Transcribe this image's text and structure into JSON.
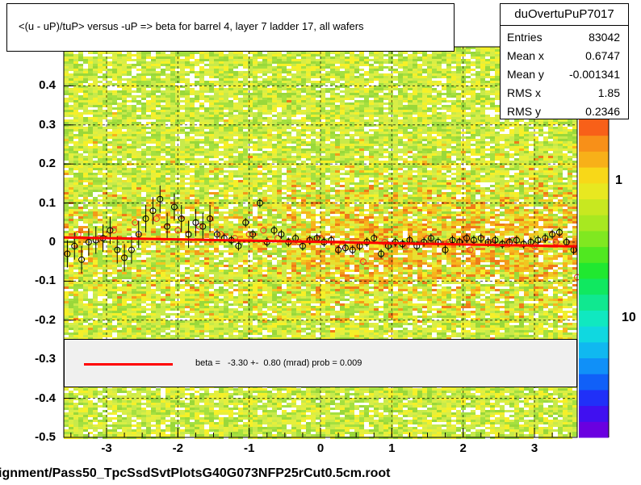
{
  "title": "<(u - uP)/tuP> versus  -uP => beta for barrel 4, layer 7 ladder 17, all wafers",
  "stats": {
    "name": "duOvertuPuP7017",
    "rows": [
      {
        "key": "Entries",
        "value": "83042"
      },
      {
        "key": "Mean x",
        "value": "0.6747"
      },
      {
        "key": "Mean y",
        "value": "-0.001341"
      },
      {
        "key": "RMS x",
        "value": "1.85"
      },
      {
        "key": "RMS y",
        "value": "0.2346"
      }
    ]
  },
  "fit": {
    "text": "beta =   -3.30 +-  0.80 (mrad) prob = 0.009",
    "color": "#ff0000"
  },
  "footer": "ignment/Pass50_TpcSsdSvtPlotsG40G073NFP25rCut0.5cm.root",
  "chart_data": {
    "type": "scatter",
    "xlim": [
      -3.6,
      3.6
    ],
    "ylim": [
      -0.5,
      0.5
    ],
    "x_ticks": [
      "-3",
      "-2",
      "-1",
      "0",
      "1",
      "2",
      "3"
    ],
    "y_ticks": [
      "-0.5",
      "-0.4",
      "-0.3",
      "-0.2",
      "-0.1",
      "0",
      "0.1",
      "0.2",
      "0.3",
      "0.4"
    ],
    "z_ticks": [
      "1",
      "10"
    ],
    "fit_line": {
      "x": [
        -3.6,
        3.6
      ],
      "y": [
        0.012,
        -0.011
      ],
      "color": "#ff0000"
    },
    "profile_black": {
      "x": [
        -3.55,
        -3.45,
        -3.35,
        -3.25,
        -3.15,
        -3.05,
        -2.95,
        -2.85,
        -2.75,
        -2.65,
        -2.55,
        -2.45,
        -2.35,
        -2.25,
        -2.15,
        -2.05,
        -1.95,
        -1.85,
        -1.75,
        -1.65,
        -1.55,
        -1.45,
        -1.35,
        -1.25,
        -1.15,
        -1.05,
        -0.95,
        -0.85,
        -0.75,
        -0.65,
        -0.55,
        -0.45,
        -0.35,
        -0.25,
        -0.15,
        -0.05,
        0.05,
        0.15,
        0.25,
        0.35,
        0.45,
        0.55,
        0.65,
        0.75,
        0.85,
        0.95,
        1.05,
        1.15,
        1.25,
        1.35,
        1.45,
        1.55,
        1.65,
        1.75,
        1.85,
        1.95,
        2.05,
        2.15,
        2.25,
        2.35,
        2.45,
        2.55,
        2.65,
        2.75,
        2.85,
        2.95,
        3.05,
        3.15,
        3.25,
        3.35,
        3.45,
        3.55
      ],
      "y": [
        -0.03,
        -0.01,
        -0.045,
        0.0,
        0.005,
        0.01,
        0.03,
        -0.02,
        -0.04,
        -0.02,
        0.02,
        0.06,
        0.08,
        0.11,
        0.04,
        0.09,
        0.06,
        0.02,
        0.05,
        0.04,
        0.06,
        0.02,
        0.01,
        0.005,
        -0.01,
        0.05,
        0.02,
        0.1,
        0.0,
        0.03,
        0.02,
        0.0,
        0.01,
        -0.01,
        0.005,
        0.01,
        0.0,
        0.005,
        -0.02,
        -0.015,
        -0.02,
        -0.01,
        0.0,
        0.01,
        -0.03,
        -0.01,
        0.0,
        -0.005,
        0.005,
        -0.01,
        0.0,
        0.01,
        0.0,
        -0.02,
        0.005,
        0.0,
        0.01,
        0.005,
        0.01,
        0.0,
        0.005,
        -0.005,
        0.0,
        0.005,
        -0.005,
        0.0,
        0.005,
        0.01,
        0.02,
        0.025,
        0.0,
        -0.02
      ]
    },
    "profile_red": {
      "x": [
        -3.4,
        -3.1,
        -2.9,
        -2.6,
        -2.3,
        -2.0,
        -1.7,
        -1.4,
        -1.2,
        -1.0,
        -0.8,
        -0.6,
        -0.3,
        0.0,
        0.3,
        0.6,
        0.9,
        1.2,
        1.5,
        1.8,
        2.1,
        2.4,
        2.7,
        3.0,
        3.3,
        3.6
      ],
      "y": [
        0.02,
        0.01,
        0.03,
        0.05,
        0.06,
        0.03,
        0.04,
        0.02,
        0.01,
        0.02,
        0.03,
        0.01,
        0.0,
        0.01,
        -0.01,
        -0.05,
        0.0,
        -0.01,
        0.01,
        0.0,
        -0.02,
        0.0,
        0.005,
        -0.01,
        0.0,
        -0.09
      ]
    }
  }
}
